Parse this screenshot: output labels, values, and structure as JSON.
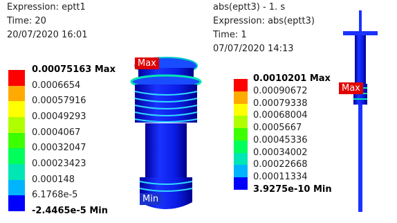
{
  "left": {
    "header": [
      "Expression: eptt1",
      "Time: 20",
      "20/07/2020 16:01"
    ],
    "legend": [
      "0.00075163 Max",
      "0.0006654",
      "0.00057916",
      "0.00049293",
      "0.0004067",
      "0.00032047",
      "0.00023423",
      "0.000148",
      "6.1768e-5",
      "-2.4465e-5 Min"
    ],
    "max_tag": "Max",
    "min_tag": "Min"
  },
  "right": {
    "header": [
      "abs(eptt3) - 1. s",
      "Expression: abs(eptt3)",
      "Time: 1",
      "07/07/2020 14:13"
    ],
    "legend": [
      "0.0010201 Max",
      "0.00090672",
      "0.00079338",
      "0.00068004",
      "0.0005667",
      "0.00045336",
      "0.00034002",
      "0.00022668",
      "0.00011334",
      "3.9275e-10 Min"
    ],
    "max_tag": "Max"
  },
  "band_colors": [
    "#ff0000",
    "#ffaa00",
    "#ffff00",
    "#b0ff00",
    "#3cff00",
    "#00ff5a",
    "#00e6b4",
    "#00b4ff",
    "#0000ff"
  ]
}
